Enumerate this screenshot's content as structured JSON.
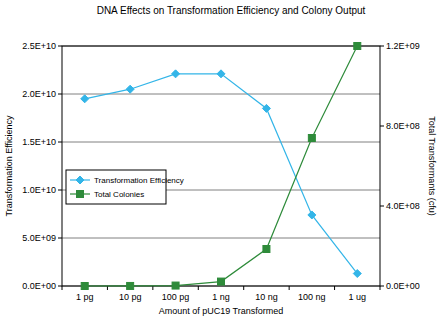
{
  "chart_data": {
    "type": "line",
    "title": "DNA Effects on Transformation Efficiency and Colony Output",
    "x_label": "Amount of pUC19 Transformed",
    "y_label": "Transformation Efficiency",
    "y2_label": "Total Transformants (cfu)",
    "categories": [
      "1 pg",
      "10 pg",
      "100 pg",
      "1 ng",
      "10 ng",
      "100 ng",
      "1 ug"
    ],
    "series": [
      {
        "name": "Transformation Efficiency",
        "color": "#33b5e8",
        "marker": "diamond",
        "line_style": "solid",
        "values": [
          19500000000,
          20500000000,
          22100000000,
          22100000000,
          18500000000,
          7400000000,
          1300000000
        ]
      },
      {
        "name": "Total Colonies",
        "color": "#2e8b3a",
        "marker": "square",
        "line_style": "solid",
        "axis": "y2",
        "values": [
          19500,
          205000,
          2210000,
          22100000,
          185000000,
          740000000,
          1200000000
        ]
      }
    ],
    "ylim": [
      0,
      25000000000
    ],
    "yticks": [
      {
        "value": 0,
        "label": "0.0E+00"
      },
      {
        "value": 5000000000,
        "label": "5.0E+09"
      },
      {
        "value": 10000000000,
        "label": "1.0E+10"
      },
      {
        "value": 15000000000,
        "label": "1.5E+10"
      },
      {
        "value": 20000000000,
        "label": "2.0E+10"
      },
      {
        "value": 25000000000,
        "label": "2.5E+10"
      }
    ],
    "y2lim": [
      0,
      1200000000
    ],
    "y2ticks": [
      {
        "value": 0,
        "label": "0.0E+00"
      },
      {
        "value": 400000000,
        "label": "4.0E+08"
      },
      {
        "value": 800000000,
        "label": "8.0E+08"
      },
      {
        "value": 1200000000,
        "label": "1.2E+09"
      }
    ],
    "grid": true,
    "legend": "left"
  }
}
